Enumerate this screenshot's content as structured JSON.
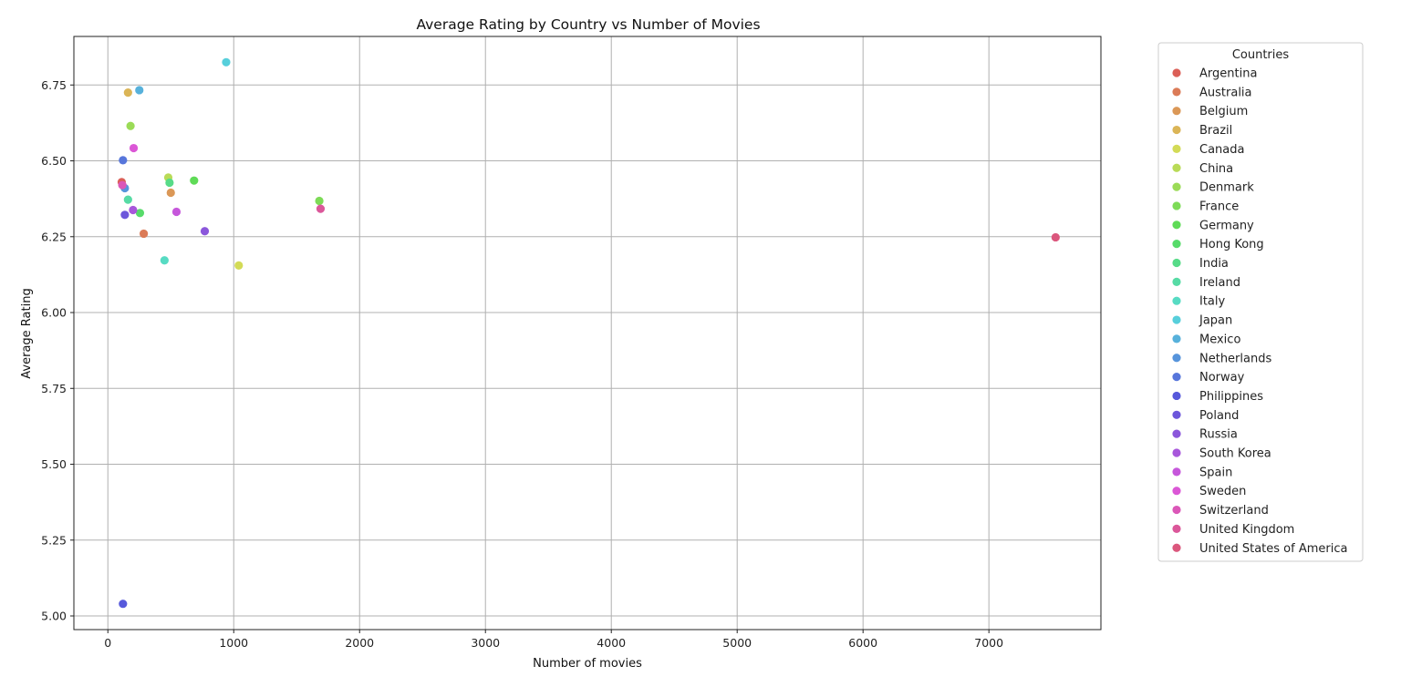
{
  "chart_data": {
    "type": "scatter",
    "title": "Average Rating by Country vs Number of Movies",
    "xlabel": "Number of movies",
    "ylabel": "Average Rating",
    "xlim": [
      -270,
      7890
    ],
    "ylim": [
      4.955,
      6.91
    ],
    "x_ticks": [
      0,
      1000,
      2000,
      3000,
      4000,
      5000,
      6000,
      7000
    ],
    "y_ticks": [
      5.0,
      5.25,
      5.5,
      5.75,
      6.0,
      6.25,
      6.5,
      6.75
    ],
    "grid": true,
    "legend": {
      "title": "Countries",
      "placement": "outside-right"
    },
    "series": [
      {
        "name": "Argentina",
        "color": "#db5f57",
        "x": 110,
        "y": 6.43
      },
      {
        "name": "Australia",
        "color": "#db7b57",
        "x": 285,
        "y": 6.26
      },
      {
        "name": "Belgium",
        "color": "#db9857",
        "x": 500,
        "y": 6.395
      },
      {
        "name": "Brazil",
        "color": "#dbb557",
        "x": 160,
        "y": 6.725
      },
      {
        "name": "Canada",
        "color": "#d3db57",
        "x": 1040,
        "y": 6.155
      },
      {
        "name": "China",
        "color": "#b9db57",
        "x": 480,
        "y": 6.445
      },
      {
        "name": "Denmark",
        "color": "#9bdb57",
        "x": 180,
        "y": 6.615
      },
      {
        "name": "France",
        "color": "#7ddb57",
        "x": 1680,
        "y": 6.368
      },
      {
        "name": "Germany",
        "color": "#5fdb57",
        "x": 685,
        "y": 6.435
      },
      {
        "name": "Hong Kong",
        "color": "#57db6a",
        "x": 255,
        "y": 6.328
      },
      {
        "name": "India",
        "color": "#57db88",
        "x": 490,
        "y": 6.428
      },
      {
        "name": "Ireland",
        "color": "#57dba5",
        "x": 160,
        "y": 6.372
      },
      {
        "name": "Italy",
        "color": "#57dbc3",
        "x": 450,
        "y": 6.172
      },
      {
        "name": "Japan",
        "color": "#57cfdb",
        "x": 940,
        "y": 6.825
      },
      {
        "name": "Mexico",
        "color": "#57b1db",
        "x": 250,
        "y": 6.733
      },
      {
        "name": "Netherlands",
        "color": "#5794db",
        "x": 135,
        "y": 6.41
      },
      {
        "name": "Norway",
        "color": "#5776db",
        "x": 120,
        "y": 6.502
      },
      {
        "name": "Philippines",
        "color": "#5759db",
        "x": 120,
        "y": 5.04
      },
      {
        "name": "Poland",
        "color": "#6d57db",
        "x": 135,
        "y": 6.322
      },
      {
        "name": "Russia",
        "color": "#8b57db",
        "x": 770,
        "y": 6.268
      },
      {
        "name": "South Korea",
        "color": "#a857db",
        "x": 200,
        "y": 6.338
      },
      {
        "name": "Spain",
        "color": "#c657db",
        "x": 545,
        "y": 6.332
      },
      {
        "name": "Sweden",
        "color": "#db57d6",
        "x": 205,
        "y": 6.542
      },
      {
        "name": "Switzerland",
        "color": "#db57b8",
        "x": 115,
        "y": 6.42
      },
      {
        "name": "United Kingdom",
        "color": "#db579a",
        "x": 1690,
        "y": 6.342
      },
      {
        "name": "United States of America",
        "color": "#db577d",
        "x": 7530,
        "y": 6.248
      }
    ]
  }
}
